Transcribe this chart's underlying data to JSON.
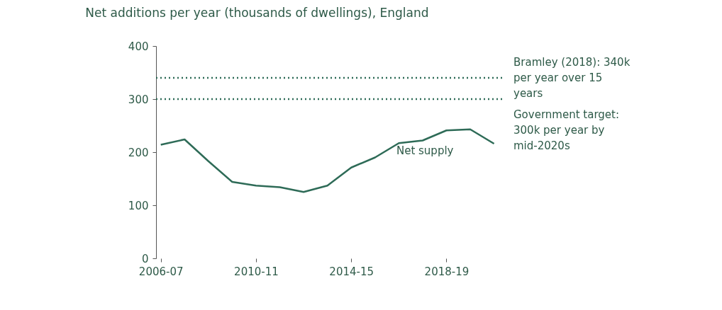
{
  "chart_data": {
    "type": "line",
    "title": "Net additions per year (thousands of dwellings), England",
    "categories": [
      "2006-07",
      null,
      null,
      null,
      "2010-11",
      null,
      null,
      null,
      "2014-15",
      null,
      null,
      null,
      "2018-19",
      null,
      null
    ],
    "series": [
      {
        "name": "Net supply",
        "color": "#2e6b57",
        "values": [
          214,
          224,
          183,
          144,
          137,
          134,
          125,
          137,
          171,
          190,
          217,
          222,
          241,
          243,
          216
        ]
      }
    ],
    "ylim": [
      0,
      400
    ],
    "yticks": [
      0,
      100,
      200,
      300,
      400
    ],
    "ref_lines": [
      {
        "axis": "y",
        "value": 340,
        "label": "Bramley (2018): 340k per year over 15 years",
        "color": "#2e6b57",
        "line_style": "dotted"
      },
      {
        "axis": "y",
        "value": 300,
        "label": "Government target: 300k per year by mid-2020s",
        "color": "#2e6b57",
        "line_style": "dotted"
      }
    ],
    "grid": false,
    "marker": "none",
    "line_style": "solid"
  }
}
